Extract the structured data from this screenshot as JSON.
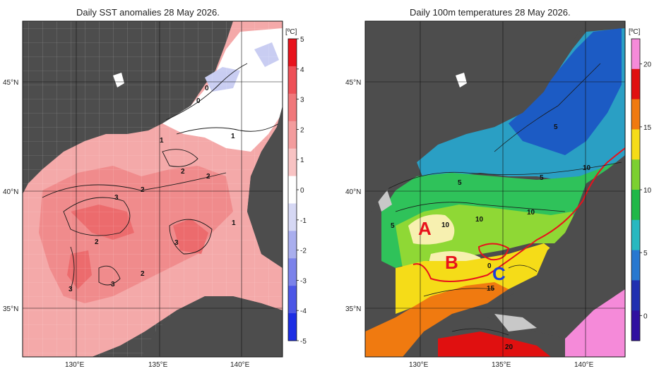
{
  "panels": [
    {
      "id": "sst-anomaly",
      "title": "Daily SST anomalies 28 May 2026.",
      "unit": "[ºC]",
      "colorbar_ticks": [
        "5",
        "4",
        "3",
        "2",
        "1",
        "0",
        "-1",
        "-2",
        "-3",
        "-4",
        "-5"
      ],
      "colorbar_colors": [
        "#e8121c",
        "#ee5057",
        "#f0777a",
        "#f39c9d",
        "#f8c3c3",
        "#ffffff",
        "#d6d8f4",
        "#a9aeee",
        "#7b82ea",
        "#4c56e6",
        "#1c2de4"
      ],
      "lat_labels": [
        "45°N",
        "40°N",
        "35°N"
      ],
      "lon_labels": [
        "130°E",
        "135°E",
        "140°E"
      ],
      "contour_labels": [
        "0",
        "0",
        "1",
        "1",
        "1",
        "2",
        "2",
        "2",
        "3",
        "3",
        "2",
        "3",
        "2",
        "3",
        "1"
      ]
    },
    {
      "id": "temp-100m",
      "title": "Daily 100m temperatures 28 May 2026.",
      "unit": "[ºC]",
      "colorbar_ticks": [
        "20",
        "15",
        "10",
        "5",
        "0"
      ],
      "colorbar_colors": [
        "#f58ad9",
        "#e01010",
        "#f07a10",
        "#f5dc18",
        "#7cd030",
        "#20b848",
        "#28b8c0",
        "#2878d0",
        "#2030b0",
        "#3010a0"
      ],
      "lat_labels": [
        "45°N",
        "40°N",
        "35°N"
      ],
      "lon_labels": [
        "130°E",
        "135°E",
        "140°E"
      ],
      "contour_labels": [
        "5",
        "5",
        "5",
        "5",
        "10",
        "10",
        "10",
        "10",
        "15",
        "20",
        "0"
      ],
      "region_labels": [
        {
          "text": "A",
          "color": "#e8121c"
        },
        {
          "text": "B",
          "color": "#e8121c"
        },
        {
          "text": "C",
          "color": "#1f3fd8"
        }
      ]
    }
  ]
}
